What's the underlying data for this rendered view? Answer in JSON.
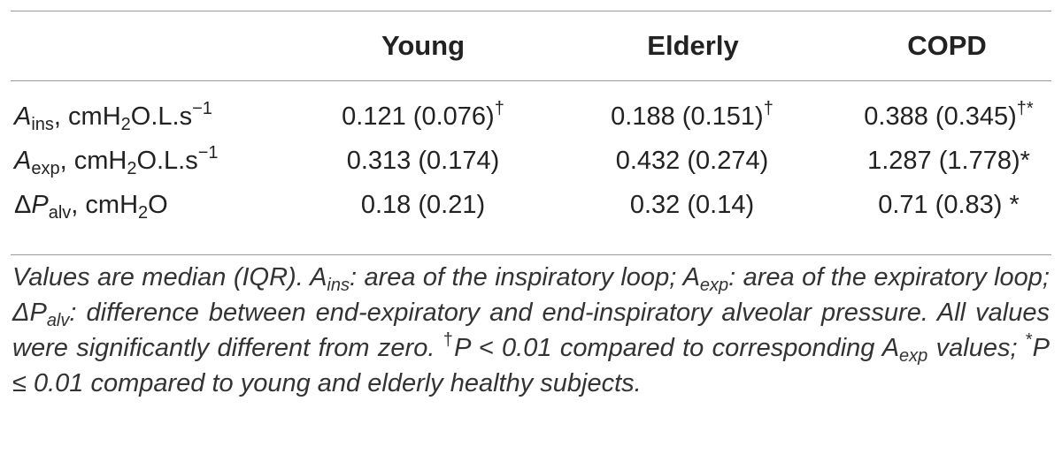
{
  "table": {
    "headers": [
      "Young",
      "Elderly",
      "COPD"
    ],
    "rows": [
      {
        "sym": "A",
        "sym_sub": "ins",
        "unit_a": ", cmH",
        "unit_sub": "2",
        "unit_b": "O.L.s",
        "unit_sup": "−1",
        "cells": [
          {
            "v": "0.121 (0.076)",
            "mark": "†"
          },
          {
            "v": "0.188 (0.151)",
            "mark": "†"
          },
          {
            "v": "0.388 (0.345)",
            "mark": "†*"
          }
        ]
      },
      {
        "sym": "A",
        "sym_sub": "exp",
        "unit_a": ", cmH",
        "unit_sub": "2",
        "unit_b": "O.L.s",
        "unit_sup": "−1",
        "cells": [
          {
            "v": "0.313 (0.174)",
            "mark": ""
          },
          {
            "v": "0.432 (0.274)",
            "mark": ""
          },
          {
            "v": "1.287 (1.778)*",
            "mark": ""
          }
        ]
      },
      {
        "sym_pre": "Δ",
        "sym": "P",
        "sym_sub": "alv",
        "unit_a": ", cmH",
        "unit_sub": "2",
        "unit_b": "O",
        "cells": [
          {
            "v": "0.18 (0.21)",
            "mark": ""
          },
          {
            "v": "0.32 (0.14)",
            "mark": ""
          },
          {
            "v": "0.71 (0.83) *",
            "mark": ""
          }
        ]
      }
    ]
  },
  "footnote": {
    "t1": "Values are median (IQR). ",
    "a_ins": "A",
    "a_ins_sub": "ins",
    "t2": ": area of the inspiratory loop; ",
    "a_exp": "A",
    "a_exp_sub": "exp",
    "t3": ": area of the expiratory loop; ",
    "dp": "ΔP",
    "dp_sub": "alv",
    "t4": ": difference between end-expiratory and end-inspiratory alveolar pressure. All values were significantly different from zero. ",
    "dagger": "†",
    "t5": "P < 0.01 compared to corresponding ",
    "a_exp2": "A",
    "a_exp2_sub": "exp",
    "t6": " values; ",
    "star": "*",
    "t7": "P ≤ 0.01 compared to young and elderly healthy subjects."
  }
}
